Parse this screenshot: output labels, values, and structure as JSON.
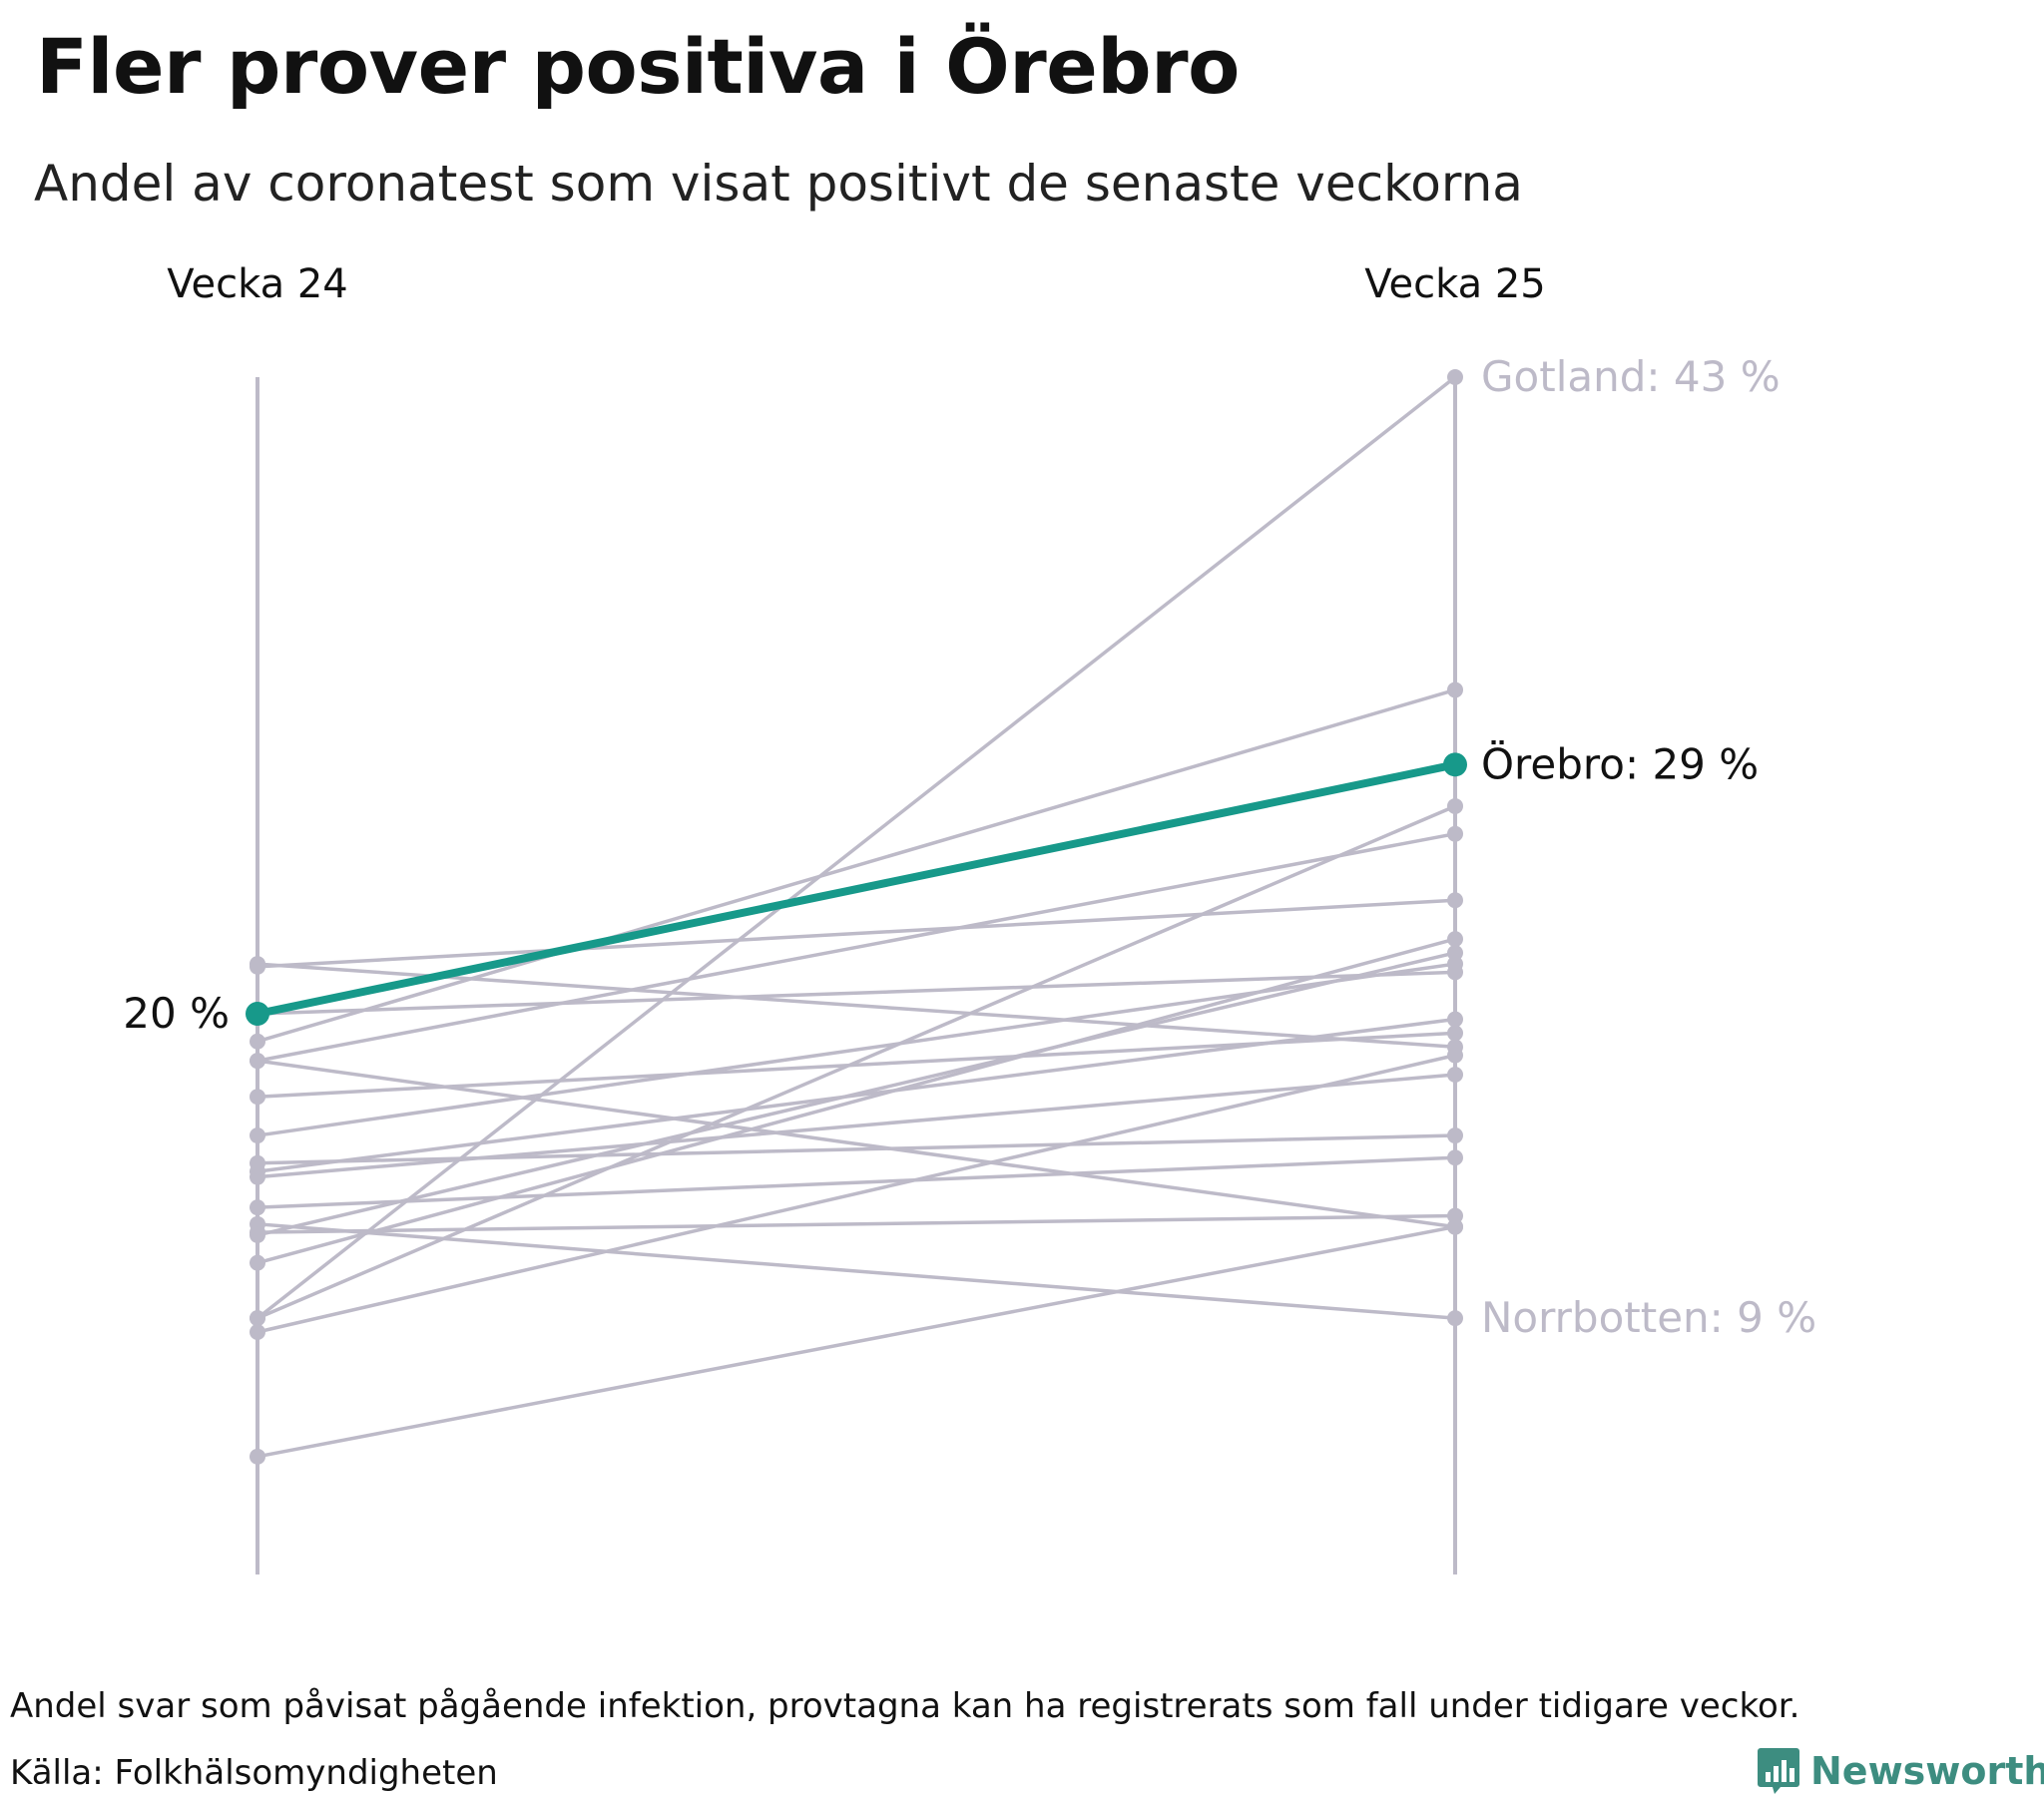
{
  "header": {
    "title": "Fler prover positiva i Örebro",
    "subtitle": "Andel av coronatest som visat positivt de senaste veckorna"
  },
  "footer": {
    "note": "Andel svar som påvisat pågående infektion, provtagna kan ha registrerats som fall under tidigare veckor.",
    "source": "Källa: Folkhälsomyndigheten",
    "brand": "Newsworthy",
    "brand_icon": "bar-chart-icon"
  },
  "colors": {
    "highlight": "#17998a",
    "other": "#bdbac8",
    "label_other": "#bdbac8",
    "brand": "#3d8d80"
  },
  "chart_data": {
    "type": "line",
    "subtype": "slope",
    "x": [
      "Vecka 24",
      "Vecka 25"
    ],
    "ylim": [
      3,
      45
    ],
    "grid": false,
    "highlight": {
      "name": "Örebro",
      "values": [
        20,
        29
      ]
    },
    "annotations": [
      {
        "series": "Gotland",
        "text": "Gotland: 43 %",
        "at": "Vecka 25"
      },
      {
        "series": "Örebro",
        "text": "Örebro: 29 %",
        "at": "Vecka 25"
      },
      {
        "series": "Norrbotten",
        "text": "Norrbotten: 9 %",
        "at": "Vecka 25"
      },
      {
        "series": "Örebro",
        "text": "20 %",
        "at": "Vecka 24"
      }
    ],
    "series": [
      {
        "name": "Gotland",
        "values": [
          9.0,
          43.0
        ]
      },
      {
        "name": "Norrbotten",
        "values": [
          12.4,
          9.0
        ]
      },
      {
        "values": [
          21.7,
          24.1
        ]
      },
      {
        "values": [
          19.0,
          31.7
        ]
      },
      {
        "values": [
          18.3,
          26.5
        ]
      },
      {
        "values": [
          17.0,
          19.3
        ]
      },
      {
        "values": [
          15.6,
          21.8
        ]
      },
      {
        "values": [
          14.6,
          15.6
        ]
      },
      {
        "values": [
          14.3,
          19.8
        ]
      },
      {
        "values": [
          14.1,
          17.8
        ]
      },
      {
        "values": [
          13.0,
          14.8
        ]
      },
      {
        "values": [
          12.1,
          12.7
        ]
      },
      {
        "values": [
          12.0,
          22.2
        ]
      },
      {
        "values": [
          11.0,
          22.7
        ]
      },
      {
        "values": [
          9.0,
          27.5
        ]
      },
      {
        "values": [
          8.5,
          18.5
        ]
      },
      {
        "values": [
          18.3,
          12.3
        ]
      },
      {
        "values": [
          4.0,
          12.3
        ]
      },
      {
        "values": [
          20.0,
          21.5
        ]
      },
      {
        "values": [
          21.8,
          18.8
        ]
      }
    ]
  }
}
